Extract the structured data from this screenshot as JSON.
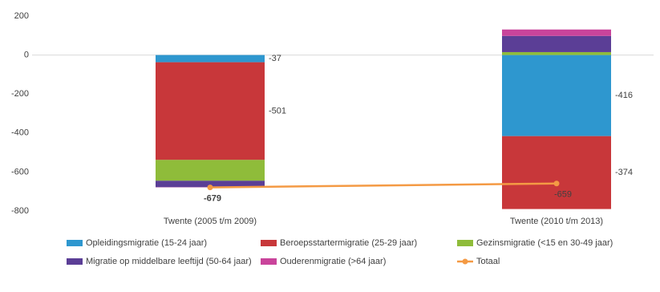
{
  "chart_data": {
    "type": "bar",
    "categories": [
      "Twente (2005 t/m 2009)",
      "Twente (2010 t/m 2013)"
    ],
    "series": [
      {
        "name": "Opleidingsmigratie (15-24 jaar)",
        "color": "#2e97cf",
        "values": [
          -37,
          -416
        ]
      },
      {
        "name": "Beroepsstartermigratie (25-29 jaar)",
        "color": "#c8373a",
        "values": [
          -501,
          -374
        ]
      },
      {
        "name": "Gezinsmigratie (<15 en 30-49 jaar)",
        "color": "#8fbc3a",
        "values": [
          -107,
          15
        ]
      },
      {
        "name": "Migratie op middelbare leeftijd (50-64 jaar)",
        "color": "#5b3e96",
        "values": [
          -33,
          83
        ]
      },
      {
        "name": "Ouderenmigratie (>64 jaar)",
        "color": "#c9449b",
        "values": [
          -1,
          33
        ]
      },
      {
        "name": "Totaal",
        "color": "#f49a44",
        "type": "line",
        "values": [
          -679,
          -659
        ]
      }
    ],
    "ylim": [
      -800,
      200
    ],
    "yticks": [
      -800,
      -600,
      -400,
      -200,
      0,
      200
    ]
  }
}
